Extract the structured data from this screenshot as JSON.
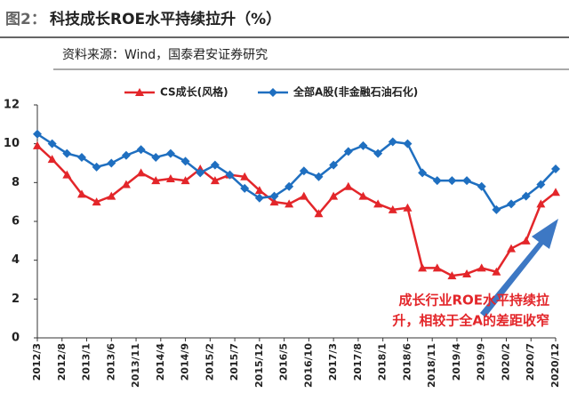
{
  "header": {
    "figure_no": "图2：",
    "title": "科技成长ROE水平持续拉升（%）",
    "source": "资料来源：Wind，国泰君安证券研究"
  },
  "chart_data": {
    "type": "line",
    "x": [
      "2012/3",
      "2012/6",
      "2012/9",
      "2012/12",
      "2013/3",
      "2013/6",
      "2013/9",
      "2013/12",
      "2014/3",
      "2014/6",
      "2014/9",
      "2014/12",
      "2015/3",
      "2015/6",
      "2015/9",
      "2015/12",
      "2016/3",
      "2016/6",
      "2016/9",
      "2016/12",
      "2017/3",
      "2017/6",
      "2017/9",
      "2017/12",
      "2018/3",
      "2018/6",
      "2018/9",
      "2018/12",
      "2019/3",
      "2019/6",
      "2019/9",
      "2019/12",
      "2020/3",
      "2020/6",
      "2020/9",
      "2020/12"
    ],
    "xlim": [
      "2012/3",
      "2020/12"
    ],
    "xticks": [
      "2012/3",
      "2012/8",
      "2013/1",
      "2013/6",
      "2013/11",
      "2014/4",
      "2014/9",
      "2015/2",
      "2015/7",
      "2015/12",
      "2016/5",
      "2016/10",
      "2017/3",
      "2017/8",
      "2018/1",
      "2018/6",
      "2018/11",
      "2019/4",
      "2019/9",
      "2020/2",
      "2020/7",
      "2020/12"
    ],
    "ylim": [
      0,
      12
    ],
    "yticks": [
      0,
      2,
      4,
      6,
      8,
      10,
      12
    ],
    "series": [
      {
        "name": "CS成长(风格)",
        "color": "#e3262a",
        "marker": "triangle",
        "values": [
          9.9,
          9.2,
          8.4,
          7.4,
          7.0,
          7.3,
          7.9,
          8.5,
          8.1,
          8.2,
          8.1,
          8.7,
          8.1,
          8.4,
          8.3,
          7.6,
          7.0,
          6.9,
          7.3,
          6.4,
          7.3,
          7.8,
          7.3,
          6.9,
          6.6,
          6.7,
          3.6,
          3.6,
          3.2,
          3.3,
          3.6,
          3.4,
          4.6,
          5.0,
          6.9,
          7.5
        ]
      },
      {
        "name": "全部A股(非金融石油石化)",
        "color": "#1f6fc0",
        "marker": "diamond",
        "values": [
          10.5,
          10.0,
          9.5,
          9.3,
          8.8,
          9.0,
          9.4,
          9.7,
          9.3,
          9.5,
          9.1,
          8.5,
          8.9,
          8.4,
          7.7,
          7.2,
          7.3,
          7.8,
          8.6,
          8.3,
          8.9,
          9.6,
          9.9,
          9.5,
          10.1,
          10.0,
          8.5,
          8.1,
          8.1,
          8.1,
          7.8,
          6.6,
          6.9,
          7.3,
          7.9,
          8.7
        ]
      }
    ],
    "annotation": [
      "成长行业ROE水平持续拉",
      "升，相较于全A的差距收窄"
    ]
  }
}
